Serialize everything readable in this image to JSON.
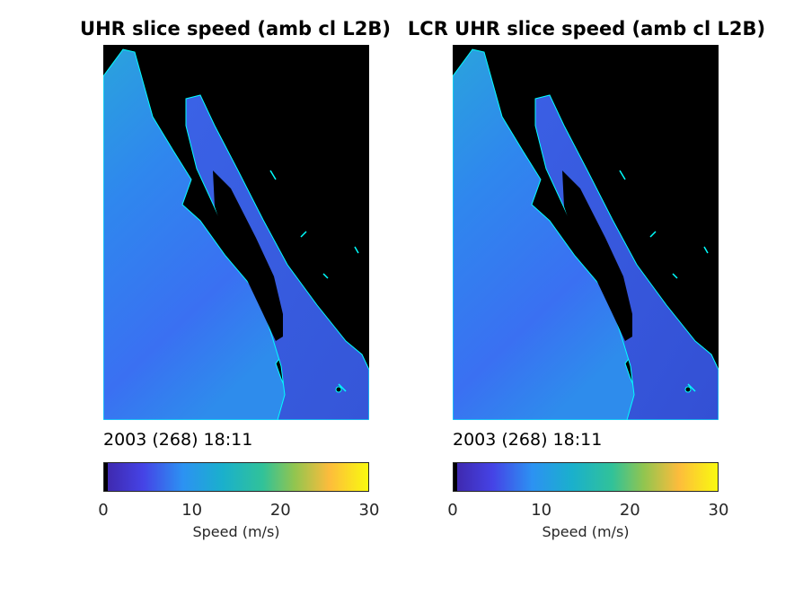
{
  "panels": [
    {
      "title": "UHR slice speed (amb cl L2B)",
      "timestamp": "2003 (268) 18:11",
      "colorbar": {
        "label": "Speed (m/s)",
        "ticks": [
          "0",
          "10",
          "20",
          "30"
        ]
      }
    },
    {
      "title": "LCR UHR slice speed (amb cl L2B)",
      "timestamp": "2003 (268) 18:11",
      "colorbar": {
        "label": "Speed (m/s)",
        "ticks": [
          "0",
          "10",
          "20",
          "30"
        ]
      }
    }
  ],
  "chart_data": [
    {
      "type": "heatmap",
      "title": "UHR slice speed (amb cl L2B)",
      "colorbar_label": "Speed (m/s)",
      "clim": [
        0,
        30
      ],
      "colorbar_ticks": [
        0,
        10,
        20,
        30
      ],
      "colormap": "parula",
      "background_color": "#000000",
      "coastline_color": "#00ffff",
      "timestamp": "2003 (268) 18:11"
    },
    {
      "type": "heatmap",
      "title": "LCR UHR slice speed (amb cl L2B)",
      "colorbar_label": "Speed (m/s)",
      "clim": [
        0,
        30
      ],
      "colorbar_ticks": [
        0,
        10,
        20,
        30
      ],
      "colormap": "parula",
      "background_color": "#000000",
      "coastline_color": "#00ffff",
      "timestamp": "2003 (268) 18:11"
    }
  ]
}
